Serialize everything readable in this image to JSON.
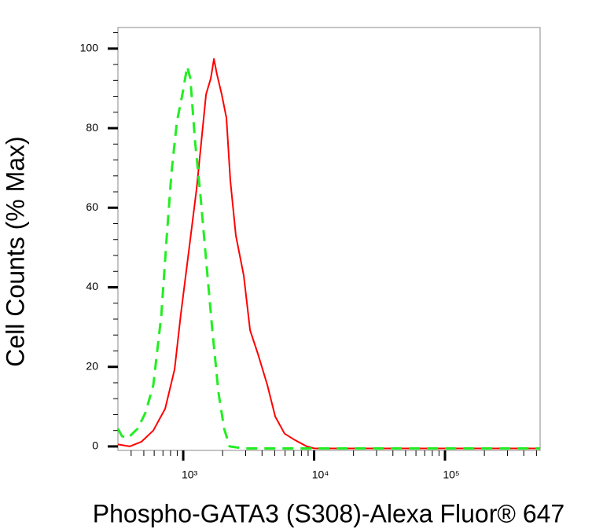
{
  "chart_data": {
    "type": "line",
    "x_label": "Phospho-GATA3 (S308)-Alexa Fluor® 647",
    "y_label": "Cell Counts (% Max)",
    "xscale": "log",
    "xlim": [
      317,
      533000
    ],
    "ylim": [
      -1,
      105.3
    ],
    "xticks": [
      {
        "value": 1000,
        "label": "10³"
      },
      {
        "value": 10000,
        "label": "10⁴"
      },
      {
        "value": 100000,
        "label": "10⁵"
      }
    ],
    "xminorticks": [
      400,
      500,
      600,
      700,
      800,
      900,
      2000,
      3000,
      4000,
      5000,
      6000,
      7000,
      8000,
      9000,
      20000,
      30000,
      40000,
      50000,
      60000,
      70000,
      80000,
      90000,
      200000,
      300000,
      400000,
      500000
    ],
    "yticks": [
      0,
      20,
      40,
      60,
      80,
      100
    ],
    "yminorticks": [
      4,
      8,
      12,
      16,
      24,
      28,
      32,
      36,
      44,
      48,
      52,
      56,
      64,
      68,
      72,
      76,
      84,
      88,
      92,
      96,
      104
    ],
    "series": [
      {
        "color": "#ff0000",
        "dashed": false,
        "x": [
          317,
          390,
          480,
          591,
          728,
          859,
          959,
          1102,
          1265,
          1413,
          1494,
          1623,
          1715,
          1812,
          1968,
          2138,
          2291,
          2523,
          2898,
          3241,
          3720,
          4393,
          5044,
          5952,
          7126,
          8776,
          10070,
          533000
        ],
        "values": [
          0.5,
          0,
          1.2,
          4,
          9.5,
          19.4,
          33.2,
          49,
          64.8,
          80.6,
          88.5,
          92.5,
          97.4,
          93.5,
          88.5,
          82.6,
          66.8,
          53,
          43,
          29.2,
          23.3,
          15.4,
          7.5,
          3.2,
          1.6,
          0,
          -0.5,
          -0.5
        ]
      },
      {
        "color": "#22ee22",
        "dashed": true,
        "x": [
          317,
          340,
          375,
          449,
          515,
          591,
          680,
          749,
          813,
          895,
          986,
          1072,
          1133,
          1231,
          1356,
          1494,
          1668,
          1862,
          2053,
          2261,
          2898,
          533000
        ],
        "values": [
          4.5,
          2.6,
          2,
          4.5,
          8.5,
          15.4,
          33,
          53,
          68.8,
          81.6,
          88.5,
          95.5,
          92.5,
          76.7,
          62.8,
          47,
          29.2,
          13.4,
          4.5,
          0,
          -0.5,
          -0.5
        ]
      }
    ]
  }
}
